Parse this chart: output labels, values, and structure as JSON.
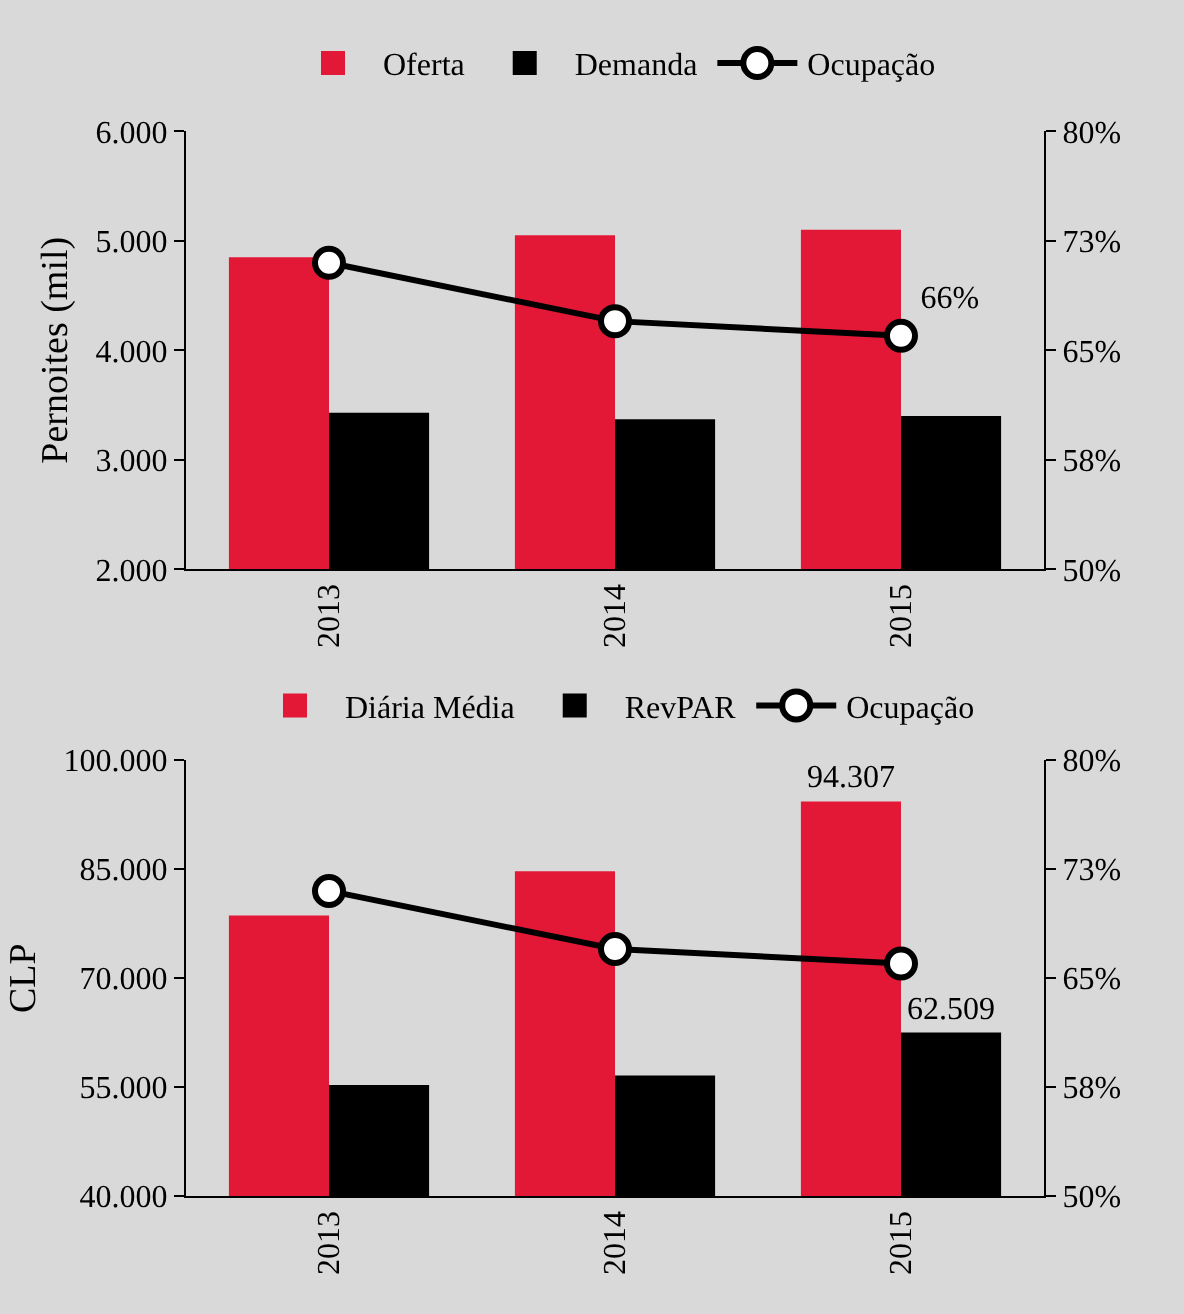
{
  "chart_data": [
    {
      "type": "bar",
      "categories": [
        "2013",
        "2014",
        "2015"
      ],
      "ylabel": "Pernoites (mil)",
      "legend": "top",
      "grid": false,
      "ylim": [
        2000,
        6000
      ],
      "yticks": [
        {
          "value": 2000,
          "label": "2.000"
        },
        {
          "value": 3000,
          "label": "3.000"
        },
        {
          "value": 4000,
          "label": "4.000"
        },
        {
          "value": 5000,
          "label": "5.000"
        },
        {
          "value": 6000,
          "label": "6.000"
        }
      ],
      "y2lim": [
        50,
        80
      ],
      "y2ticks": [
        {
          "value": 50,
          "label": "50%"
        },
        {
          "value": 57.5,
          "label": "58%"
        },
        {
          "value": 65,
          "label": "65%"
        },
        {
          "value": 72.5,
          "label": "73%"
        },
        {
          "value": 80,
          "label": "80%"
        }
      ],
      "series": [
        {
          "name": "Oferta",
          "color": "#e31837",
          "values": [
            4850,
            5050,
            5100
          ]
        },
        {
          "name": "Demanda",
          "color": "#000000",
          "values": [
            3430,
            3370,
            3400
          ]
        },
        {
          "name": "Ocupação",
          "type": "line",
          "axis": "y2",
          "marker": "circle",
          "color": "#000000",
          "values": [
            71,
            67,
            66
          ],
          "value_labels": [
            null,
            null,
            "66%"
          ]
        }
      ]
    },
    {
      "type": "bar",
      "categories": [
        "2013",
        "2014",
        "2015"
      ],
      "ylabel": "CLP",
      "legend": "top",
      "grid": false,
      "ylim": [
        40000,
        100000
      ],
      "yticks": [
        {
          "value": 40000,
          "label": "40.000"
        },
        {
          "value": 55000,
          "label": "55.000"
        },
        {
          "value": 70000,
          "label": "70.000"
        },
        {
          "value": 85000,
          "label": "85.000"
        },
        {
          "value": 100000,
          "label": "100.000"
        }
      ],
      "y2lim": [
        50,
        80
      ],
      "y2ticks": [
        {
          "value": 50,
          "label": "50%"
        },
        {
          "value": 57.5,
          "label": "58%"
        },
        {
          "value": 65,
          "label": "65%"
        },
        {
          "value": 72.5,
          "label": "73%"
        },
        {
          "value": 80,
          "label": "80%"
        }
      ],
      "series": [
        {
          "name": "Diária Média",
          "color": "#e31837",
          "values": [
            78600,
            84700,
            94307
          ],
          "value_labels": [
            null,
            null,
            "94.307"
          ]
        },
        {
          "name": "RevPAR",
          "color": "#000000",
          "values": [
            55300,
            56600,
            62509
          ],
          "value_labels": [
            null,
            null,
            "62.509"
          ]
        },
        {
          "name": "Ocupação",
          "type": "line",
          "axis": "y2",
          "marker": "circle",
          "color": "#000000",
          "values": [
            71,
            67,
            66
          ]
        }
      ]
    }
  ]
}
